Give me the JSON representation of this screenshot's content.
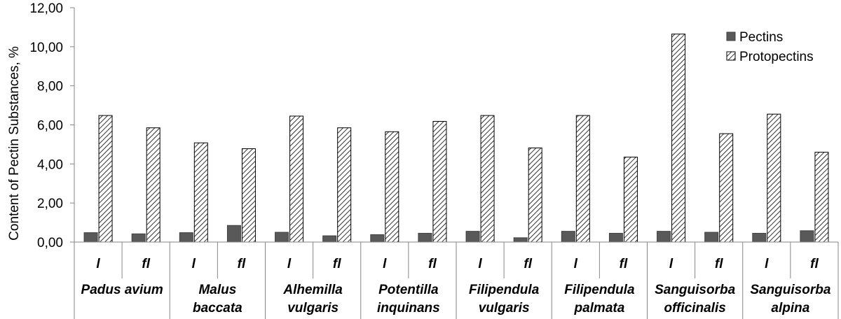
{
  "chart_data": {
    "type": "bar",
    "title": "",
    "xlabel": "",
    "ylabel": "Content of Pectin Substances, %",
    "ylim": [
      0,
      12
    ],
    "yticks": [
      "0,00",
      "2,00",
      "4,00",
      "6,00",
      "8,00",
      "10,00",
      "12,00"
    ],
    "grid": false,
    "legend_position": "top-right",
    "groups": [
      {
        "line1": "Padus avium",
        "line2": ""
      },
      {
        "line1": "Malus",
        "line2": "baccata"
      },
      {
        "line1": "Alhemilla",
        "line2": "vulgaris"
      },
      {
        "line1": "Potentilla",
        "line2": "inquinans"
      },
      {
        "line1": "Filipendula",
        "line2": "vulgaris"
      },
      {
        "line1": "Filipendula",
        "line2": "palmata"
      },
      {
        "line1": "Sanguisorba",
        "line2": "officinalis"
      },
      {
        "line1": "Sanguisorba",
        "line2": "alpina"
      }
    ],
    "categories": [
      "l",
      "fl",
      "l",
      "fl",
      "l",
      "fl",
      "l",
      "fl",
      "l",
      "fl",
      "l",
      "fl",
      "l",
      "fl",
      "l",
      "fl"
    ],
    "series": [
      {
        "name": "Pectins",
        "color": "#595959",
        "pattern": "solid",
        "values": [
          0.48,
          0.42,
          0.48,
          0.85,
          0.5,
          0.32,
          0.38,
          0.45,
          0.55,
          0.22,
          0.55,
          0.45,
          0.55,
          0.5,
          0.45,
          0.58
        ]
      },
      {
        "name": "Protopectins",
        "color": "#ffffff",
        "pattern": "diagonal-hatch",
        "values": [
          6.48,
          5.85,
          5.08,
          4.78,
          6.45,
          5.85,
          5.65,
          6.18,
          6.48,
          4.82,
          6.48,
          4.35,
          10.65,
          5.55,
          6.55,
          4.6
        ]
      }
    ]
  }
}
